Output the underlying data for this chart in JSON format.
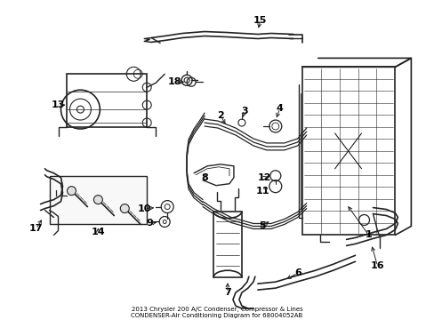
{
  "bg_color": "#ffffff",
  "line_color": "#222222",
  "label_color": "#000000",
  "fig_width": 4.89,
  "fig_height": 3.6,
  "dpi": 100,
  "title": "2013 Chrysler 200 A/C Condenser, Compressor & Lines\nCONDENSER-Air Conditioning Diagram for 68004052AB",
  "title_fontsize": 5.0,
  "label_fontsize": 8.0
}
